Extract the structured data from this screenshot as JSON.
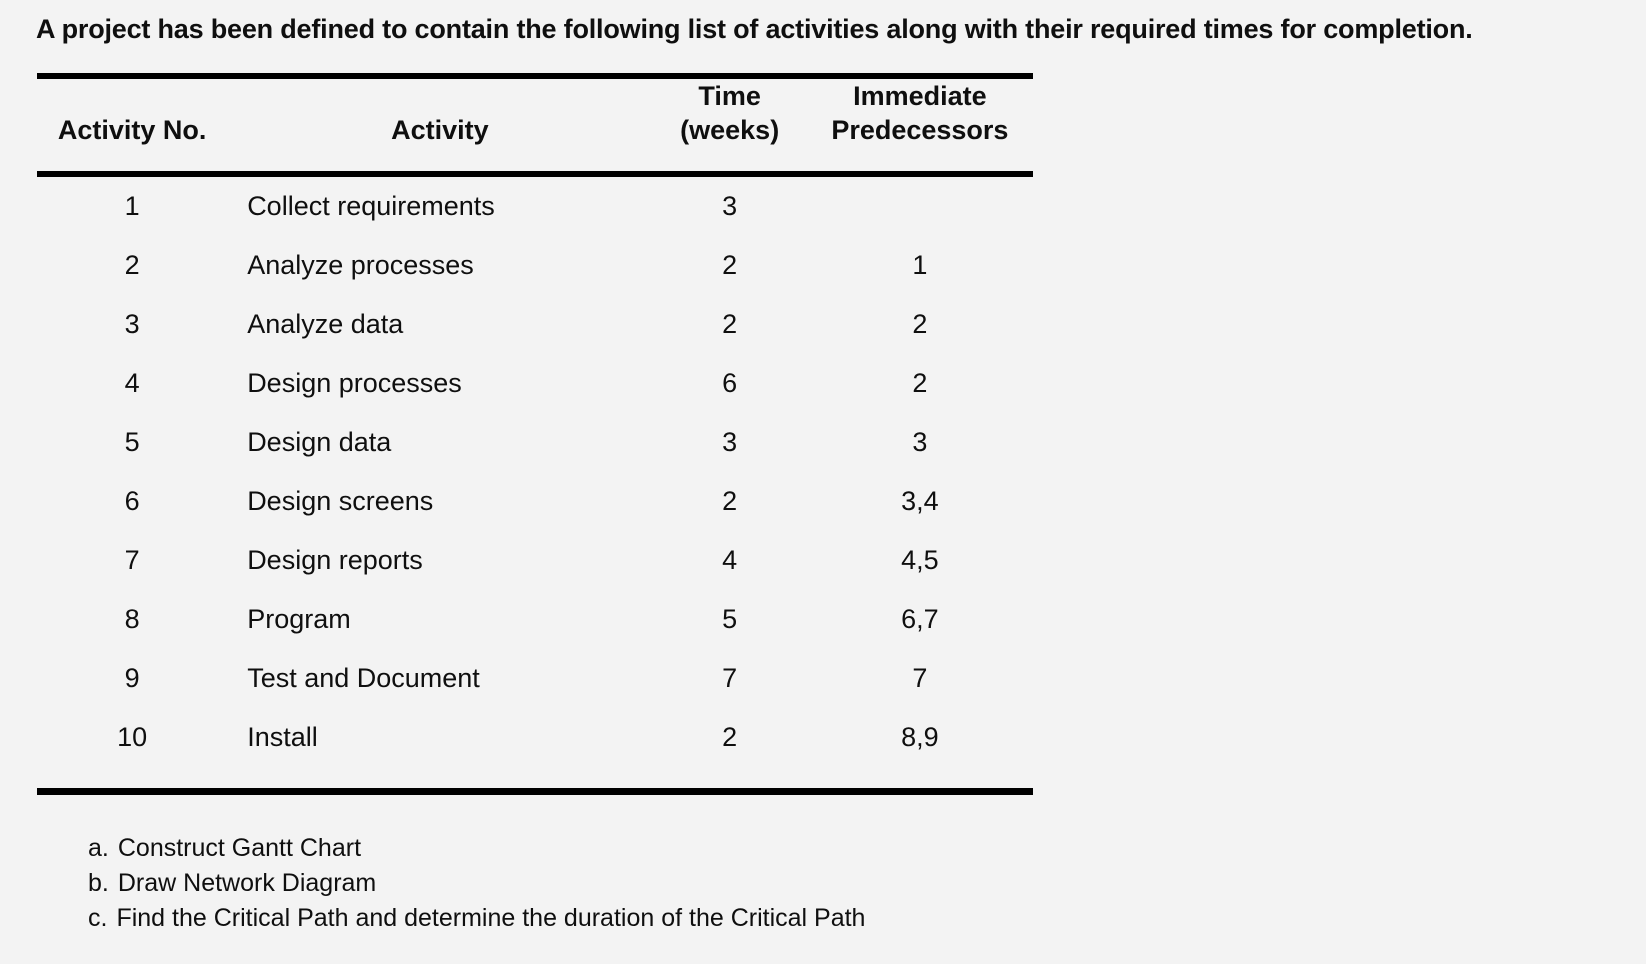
{
  "page": {
    "title": "A project has been defined to contain the following list of activities along with their required times for completion."
  },
  "table": {
    "headers": {
      "activity_no": "Activity No.",
      "activity": "Activity",
      "time_line1": "Time",
      "time_line2": "(weeks)",
      "predecessors_line1": "Immediate",
      "predecessors_line2": "Predecessors"
    },
    "rows": [
      {
        "no": "1",
        "activity": "Collect requirements",
        "time": "3",
        "predecessors": ""
      },
      {
        "no": "2",
        "activity": "Analyze processes",
        "time": "2",
        "predecessors": "1"
      },
      {
        "no": "3",
        "activity": "Analyze data",
        "time": "2",
        "predecessors": "2"
      },
      {
        "no": "4",
        "activity": "Design processes",
        "time": "6",
        "predecessors": "2"
      },
      {
        "no": "5",
        "activity": "Design data",
        "time": "3",
        "predecessors": "3"
      },
      {
        "no": "6",
        "activity": "Design screens",
        "time": "2",
        "predecessors": "3,4"
      },
      {
        "no": "7",
        "activity": "Design reports",
        "time": "4",
        "predecessors": "4,5"
      },
      {
        "no": "8",
        "activity": "Program",
        "time": "5",
        "predecessors": "6,7"
      },
      {
        "no": "9",
        "activity": "Test and Document",
        "time": "7",
        "predecessors": "7"
      },
      {
        "no": "10",
        "activity": "Install",
        "time": "2",
        "predecessors": "8,9"
      }
    ]
  },
  "tasks": [
    {
      "label": "a.",
      "text": "Construct Gantt Chart"
    },
    {
      "label": "b.",
      "text": "Draw Network Diagram"
    },
    {
      "label": "c.",
      "text": "Find the Critical Path and determine the duration of the Critical Path"
    }
  ],
  "colors": {
    "background": "#f3f3f3",
    "text": "#0f0f0f",
    "rule": "#000000"
  }
}
